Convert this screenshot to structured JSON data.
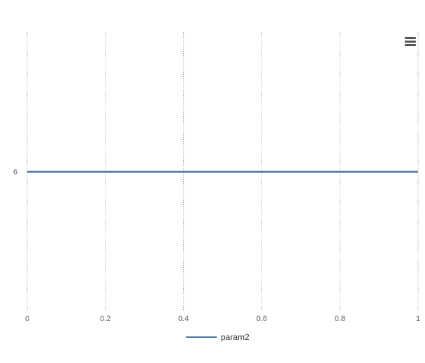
{
  "chart_data": {
    "type": "line",
    "title": "",
    "xlabel": "",
    "ylabel": "",
    "x_ticks": [
      "0",
      "0.2",
      "0.4",
      "0.6",
      "0.8",
      "1"
    ],
    "x_tick_values": [
      0,
      0.2,
      0.4,
      0.6,
      0.8,
      1
    ],
    "y_ticks": [
      "6"
    ],
    "y_tick_values": [
      6
    ],
    "xlim": [
      0,
      1
    ],
    "ylim": [
      5,
      7
    ],
    "grid": "vertical-dotted",
    "legend_position": "bottom-center",
    "series": [
      {
        "name": "param2",
        "color": "#4572A7",
        "x": [
          0,
          1
        ],
        "y": [
          6,
          6
        ]
      }
    ]
  },
  "menu": {
    "icon": "hamburger-menu-icon"
  },
  "colors": {
    "grid": "#999999",
    "axis_label": "#606060",
    "legend_text": "#333333",
    "menu_icon": "#555555"
  }
}
